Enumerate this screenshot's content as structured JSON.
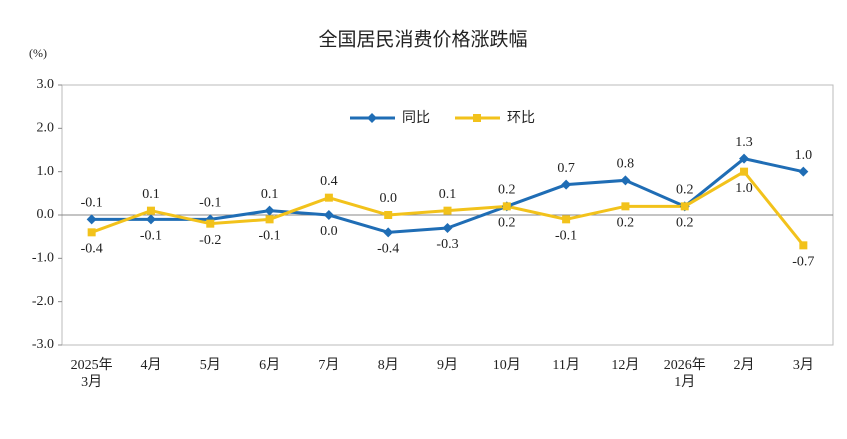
{
  "chart_data": {
    "type": "line",
    "title": "全国居民消费价格涨跌幅",
    "y_label": "(%)",
    "categories": [
      "2025年\n3月",
      "4月",
      "5月",
      "6月",
      "7月",
      "8月",
      "9月",
      "10月",
      "11月",
      "12月",
      "2026年\n1月",
      "2月",
      "3月"
    ],
    "series": [
      {
        "name": "同比",
        "color": "#1f6db5",
        "marker": "diamond",
        "values": [
          -0.1,
          -0.1,
          -0.1,
          0.1,
          0.0,
          -0.4,
          -0.3,
          0.2,
          0.7,
          0.8,
          0.2,
          1.3,
          1.0
        ],
        "value_labels": [
          "-0.1",
          "-0.1",
          "-0.1",
          "0.1",
          "0.0",
          "-0.4",
          "-0.3",
          "0.2",
          "0.7",
          "0.8",
          "0.2",
          "1.3",
          "1.0"
        ]
      },
      {
        "name": "环比",
        "color": "#f2c21b",
        "marker": "square",
        "values": [
          -0.4,
          0.1,
          -0.2,
          -0.1,
          0.4,
          0.0,
          0.1,
          0.2,
          -0.1,
          0.2,
          0.2,
          1.0,
          -0.7
        ],
        "value_labels": [
          "-0.4",
          "0.1",
          "-0.2",
          "-0.1",
          "0.4",
          "0.0",
          "0.1",
          "0.2",
          "-0.1",
          "0.2",
          "0.2",
          "1.0",
          "-0.7"
        ]
      }
    ],
    "ylim": [
      -3,
      3
    ],
    "yticks": [
      {
        "value": -3,
        "label": "-3.0"
      },
      {
        "value": -2,
        "label": "-2.0"
      },
      {
        "value": -1,
        "label": "-1.0"
      },
      {
        "value": 0,
        "label": "0.0"
      },
      {
        "value": 1,
        "label": "1.0"
      },
      {
        "value": 2,
        "label": "2.0"
      },
      {
        "value": 3,
        "label": "3.0"
      }
    ],
    "legend": "top"
  }
}
